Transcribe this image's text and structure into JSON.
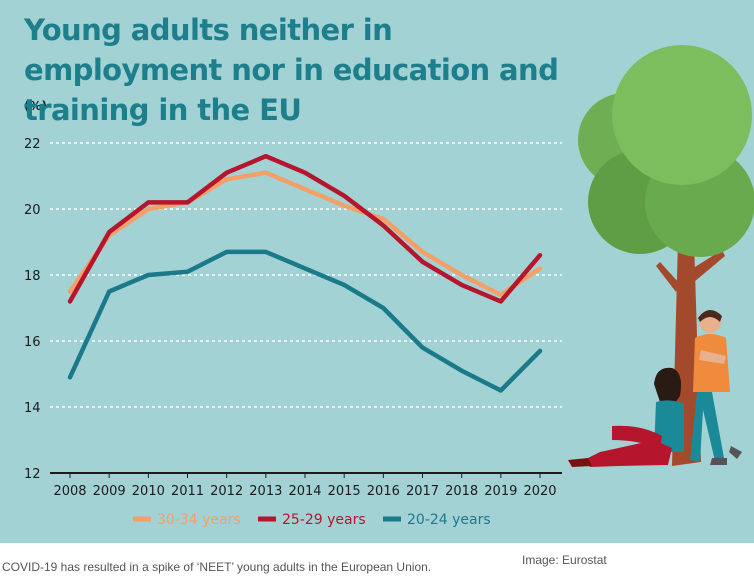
{
  "title": "Young adults neither in employment nor in education and training in the EU",
  "caption": "COVID-19 has resulted in a spike of ‘NEET’ young adults in the European Union.",
  "credit": "Image: Eurostat",
  "colors": {
    "background": "#a3d2d5",
    "title": "#1d7e8c"
  },
  "chart_data": {
    "type": "line",
    "title": "Young adults neither in employment nor in education and training in the EU",
    "ylabel": "(%)",
    "xlabel": "",
    "ylim": [
      12,
      22
    ],
    "yticks": [
      12,
      14,
      16,
      18,
      20,
      22
    ],
    "grid": true,
    "legend_position": "bottom",
    "x": [
      "2008",
      "2009",
      "2010",
      "2011",
      "2012",
      "2013",
      "2014",
      "2015",
      "2016",
      "2017",
      "2018",
      "2019",
      "2020"
    ],
    "series": [
      {
        "name": "30-34 years",
        "color": "#f2a068",
        "values": [
          17.5,
          19.2,
          20.0,
          20.2,
          20.9,
          21.1,
          20.6,
          20.1,
          19.7,
          18.7,
          18.0,
          17.4,
          18.2
        ]
      },
      {
        "name": "25-29 years",
        "color": "#b5162e",
        "values": [
          17.2,
          19.3,
          20.2,
          20.2,
          21.1,
          21.6,
          21.1,
          20.4,
          19.5,
          18.4,
          17.7,
          17.2,
          18.6
        ]
      },
      {
        "name": "20-24 years",
        "color": "#1a7a8a",
        "values": [
          14.9,
          17.5,
          18.0,
          18.1,
          18.7,
          18.7,
          18.2,
          17.7,
          17.0,
          15.8,
          15.1,
          14.5,
          15.7
        ]
      }
    ]
  }
}
